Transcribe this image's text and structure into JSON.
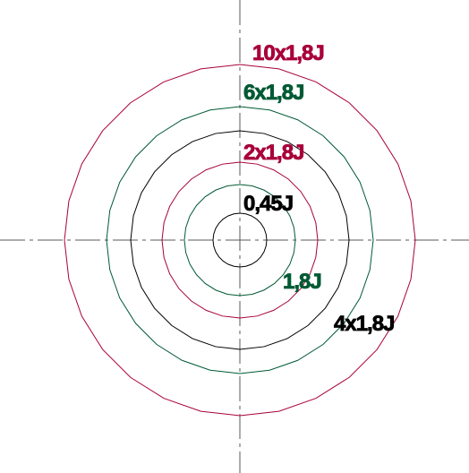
{
  "colors": {
    "crimson": "#a8003a",
    "green": "#005a34",
    "black": "#000000",
    "axis": "#5a5a5a"
  },
  "rings": [
    {
      "label": "0,45J",
      "color": "#000000"
    },
    {
      "label": "1,8J",
      "color": "#005a34"
    },
    {
      "label": "2x1,8J",
      "color": "#a8003a"
    },
    {
      "label": "4x1,8J",
      "color": "#000000"
    },
    {
      "label": "6x1,8J",
      "color": "#005a34"
    },
    {
      "label": "10x1,8J",
      "color": "#a8003a"
    }
  ]
}
